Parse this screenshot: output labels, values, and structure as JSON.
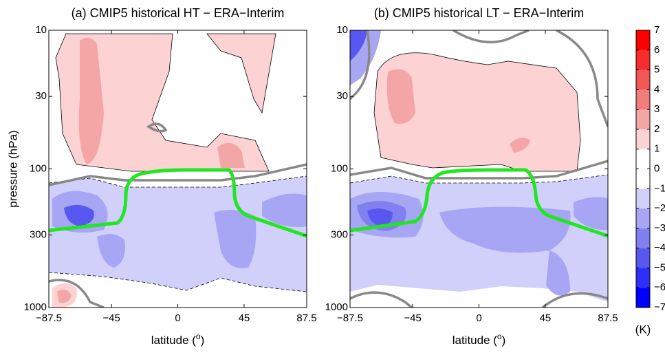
{
  "chart_data": [
    {
      "type": "contour",
      "title": "(a) CMIP5 historical HT − ERA−Interim",
      "xlabel": [
        "latitude (",
        "o",
        ")"
      ],
      "ylabel": "pressure (hPa)",
      "xlim": [
        -87.5,
        87.5
      ],
      "xticks": [
        {
          "value": -87.5,
          "label": "−87.5"
        },
        {
          "value": -45,
          "label": "−45"
        },
        0,
        45,
        87.5
      ],
      "ylim": [
        1000,
        10
      ],
      "yticks": [
        10,
        30,
        100,
        300,
        1000
      ],
      "log_scale_y": true
    },
    {
      "type": "contour",
      "title": "(b) CMIP5 historical LT − ERA−Interim",
      "xlabel": [
        "latitude (",
        "o",
        ")"
      ],
      "xlim": [
        -87.5,
        87.5
      ],
      "xticks": [
        {
          "value": -87.5,
          "label": "−87.5"
        },
        {
          "value": -45,
          "label": "−45"
        },
        0,
        45,
        87.5
      ],
      "ylim": [
        1000,
        10
      ],
      "yticks": [
        10,
        30,
        100,
        300,
        1000
      ],
      "log_scale_y": true
    }
  ],
  "colorbar": {
    "label": "(K)",
    "ticks": [
      {
        "value": -7,
        "label": "−7"
      },
      {
        "value": -6,
        "label": "−6"
      },
      {
        "value": -5,
        "label": "−5"
      },
      {
        "value": -4,
        "label": "−4"
      },
      {
        "value": -3,
        "label": "−3"
      },
      {
        "value": -2,
        "label": "−2"
      },
      {
        "value": -1,
        "label": "−1"
      },
      0,
      1,
      2,
      3,
      4,
      5,
      6,
      7
    ],
    "colors": [
      "#0000ff",
      "#2f2ff8",
      "#5858f0",
      "#8080f0",
      "#a6a6f4",
      "#d0d0fa",
      "#ffffff",
      "#ffffff",
      "#fcd2d2",
      "#f4a6a6",
      "#f07c7c",
      "#f25656",
      "#f82c2c",
      "#ff0000"
    ]
  }
}
